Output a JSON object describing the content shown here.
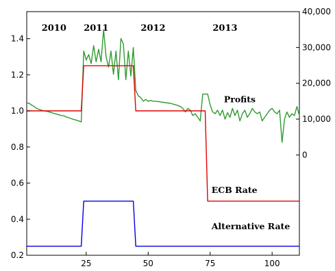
{
  "chart_data": {
    "type": "line",
    "title": "",
    "xlabel": "",
    "ylabel": "",
    "xlim": [
      1,
      111
    ],
    "x_ticks": [
      25,
      50,
      75,
      100
    ],
    "left_axis": {
      "ylim": [
        0.2,
        1.55
      ],
      "ticks": [
        0.2,
        0.4,
        0.6,
        0.8,
        1.0,
        1.2,
        1.4
      ],
      "tick_labels": [
        "0.2",
        "0.4",
        "0.6",
        "0.8",
        "1.0",
        "1.2",
        "1.4"
      ]
    },
    "right_axis": {
      "ylim": [
        -28000,
        40000
      ],
      "ticks": [
        0,
        10000,
        20000,
        30000,
        40000
      ],
      "tick_labels": [
        "0",
        "10,000",
        "20,000",
        "30,000",
        "40,000"
      ]
    },
    "year_labels": [
      {
        "label": "2010",
        "x": 12
      },
      {
        "label": "2011",
        "x": 29
      },
      {
        "label": "2012",
        "x": 52
      },
      {
        "label": "2013",
        "x": 81
      }
    ],
    "series": [
      {
        "name": "Profits",
        "axis": "right",
        "color": "#2e9a2e",
        "label_at": {
          "x": 80,
          "y": 15500
        },
        "points": [
          [
            1,
            14500
          ],
          [
            2,
            14400
          ],
          [
            3,
            13900
          ],
          [
            4,
            13500
          ],
          [
            5,
            13000
          ],
          [
            6,
            12700
          ],
          [
            7,
            12500
          ],
          [
            8,
            12300
          ],
          [
            9,
            12200
          ],
          [
            10,
            12000
          ],
          [
            11,
            11800
          ],
          [
            12,
            11600
          ],
          [
            13,
            11400
          ],
          [
            14,
            11200
          ],
          [
            15,
            11000
          ],
          [
            16,
            10900
          ],
          [
            17,
            10600
          ],
          [
            18,
            10400
          ],
          [
            19,
            10100
          ],
          [
            20,
            9900
          ],
          [
            21,
            9700
          ],
          [
            22,
            9500
          ],
          [
            23,
            9200
          ],
          [
            24,
            29000
          ],
          [
            25,
            26500
          ],
          [
            26,
            28000
          ],
          [
            27,
            25500
          ],
          [
            28,
            30500
          ],
          [
            29,
            26000
          ],
          [
            30,
            29500
          ],
          [
            31,
            26000
          ],
          [
            32,
            35000
          ],
          [
            33,
            27500
          ],
          [
            34,
            24500
          ],
          [
            35,
            29000
          ],
          [
            36,
            22500
          ],
          [
            37,
            29000
          ],
          [
            38,
            21000
          ],
          [
            39,
            32500
          ],
          [
            40,
            31000
          ],
          [
            41,
            21000
          ],
          [
            42,
            29000
          ],
          [
            43,
            22000
          ],
          [
            44,
            30000
          ],
          [
            45,
            18000
          ],
          [
            46,
            16500
          ],
          [
            47,
            16000
          ],
          [
            48,
            15000
          ],
          [
            49,
            15500
          ],
          [
            50,
            15000
          ],
          [
            51,
            15200
          ],
          [
            52,
            15000
          ],
          [
            53,
            15000
          ],
          [
            54,
            14900
          ],
          [
            55,
            14800
          ],
          [
            56,
            14700
          ],
          [
            57,
            14600
          ],
          [
            58,
            14500
          ],
          [
            59,
            14400
          ],
          [
            60,
            14200
          ],
          [
            61,
            14000
          ],
          [
            62,
            13800
          ],
          [
            63,
            13500
          ],
          [
            64,
            13000
          ],
          [
            65,
            12000
          ],
          [
            66,
            13000
          ],
          [
            67,
            12500
          ],
          [
            68,
            11000
          ],
          [
            69,
            11500
          ],
          [
            70,
            10500
          ],
          [
            71,
            9500
          ],
          [
            72,
            17000
          ],
          [
            73,
            17000
          ],
          [
            74,
            17000
          ],
          [
            75,
            14000
          ],
          [
            76,
            12000
          ],
          [
            77,
            11500
          ],
          [
            78,
            12500
          ],
          [
            79,
            11000
          ],
          [
            80,
            12500
          ],
          [
            81,
            10000
          ],
          [
            82,
            11800
          ],
          [
            83,
            10500
          ],
          [
            84,
            13000
          ],
          [
            85,
            11000
          ],
          [
            86,
            12500
          ],
          [
            87,
            9500
          ],
          [
            88,
            11500
          ],
          [
            89,
            12500
          ],
          [
            90,
            10500
          ],
          [
            91,
            11500
          ],
          [
            92,
            13000
          ],
          [
            93,
            12000
          ],
          [
            94,
            11500
          ],
          [
            95,
            12000
          ],
          [
            96,
            9500
          ],
          [
            97,
            10500
          ],
          [
            98,
            11500
          ],
          [
            99,
            12500
          ],
          [
            100,
            13000
          ],
          [
            101,
            12000
          ],
          [
            102,
            11500
          ],
          [
            103,
            12500
          ],
          [
            104,
            3500
          ],
          [
            105,
            10000
          ],
          [
            106,
            12000
          ],
          [
            107,
            10500
          ],
          [
            108,
            11500
          ],
          [
            109,
            11000
          ],
          [
            110,
            13500
          ],
          [
            111,
            11000
          ]
        ]
      },
      {
        "name": "ECB Rate",
        "axis": "left",
        "color": "#e00000",
        "label_at": {
          "x": 75,
          "y": 0.56
        },
        "points": [
          [
            1,
            1.0
          ],
          [
            23,
            1.0
          ],
          [
            24,
            1.25
          ],
          [
            44,
            1.25
          ],
          [
            45,
            1.0
          ],
          [
            73,
            1.0
          ],
          [
            74,
            0.5
          ],
          [
            111,
            0.5
          ]
        ]
      },
      {
        "name": "Alternative Rate",
        "axis": "left",
        "color": "#0000e0",
        "label_at": {
          "x": 75,
          "y": 0.36
        },
        "points": [
          [
            1,
            0.25
          ],
          [
            23,
            0.25
          ],
          [
            24,
            0.5
          ],
          [
            44,
            0.5
          ],
          [
            45,
            0.25
          ],
          [
            111,
            0.25
          ]
        ]
      }
    ]
  }
}
